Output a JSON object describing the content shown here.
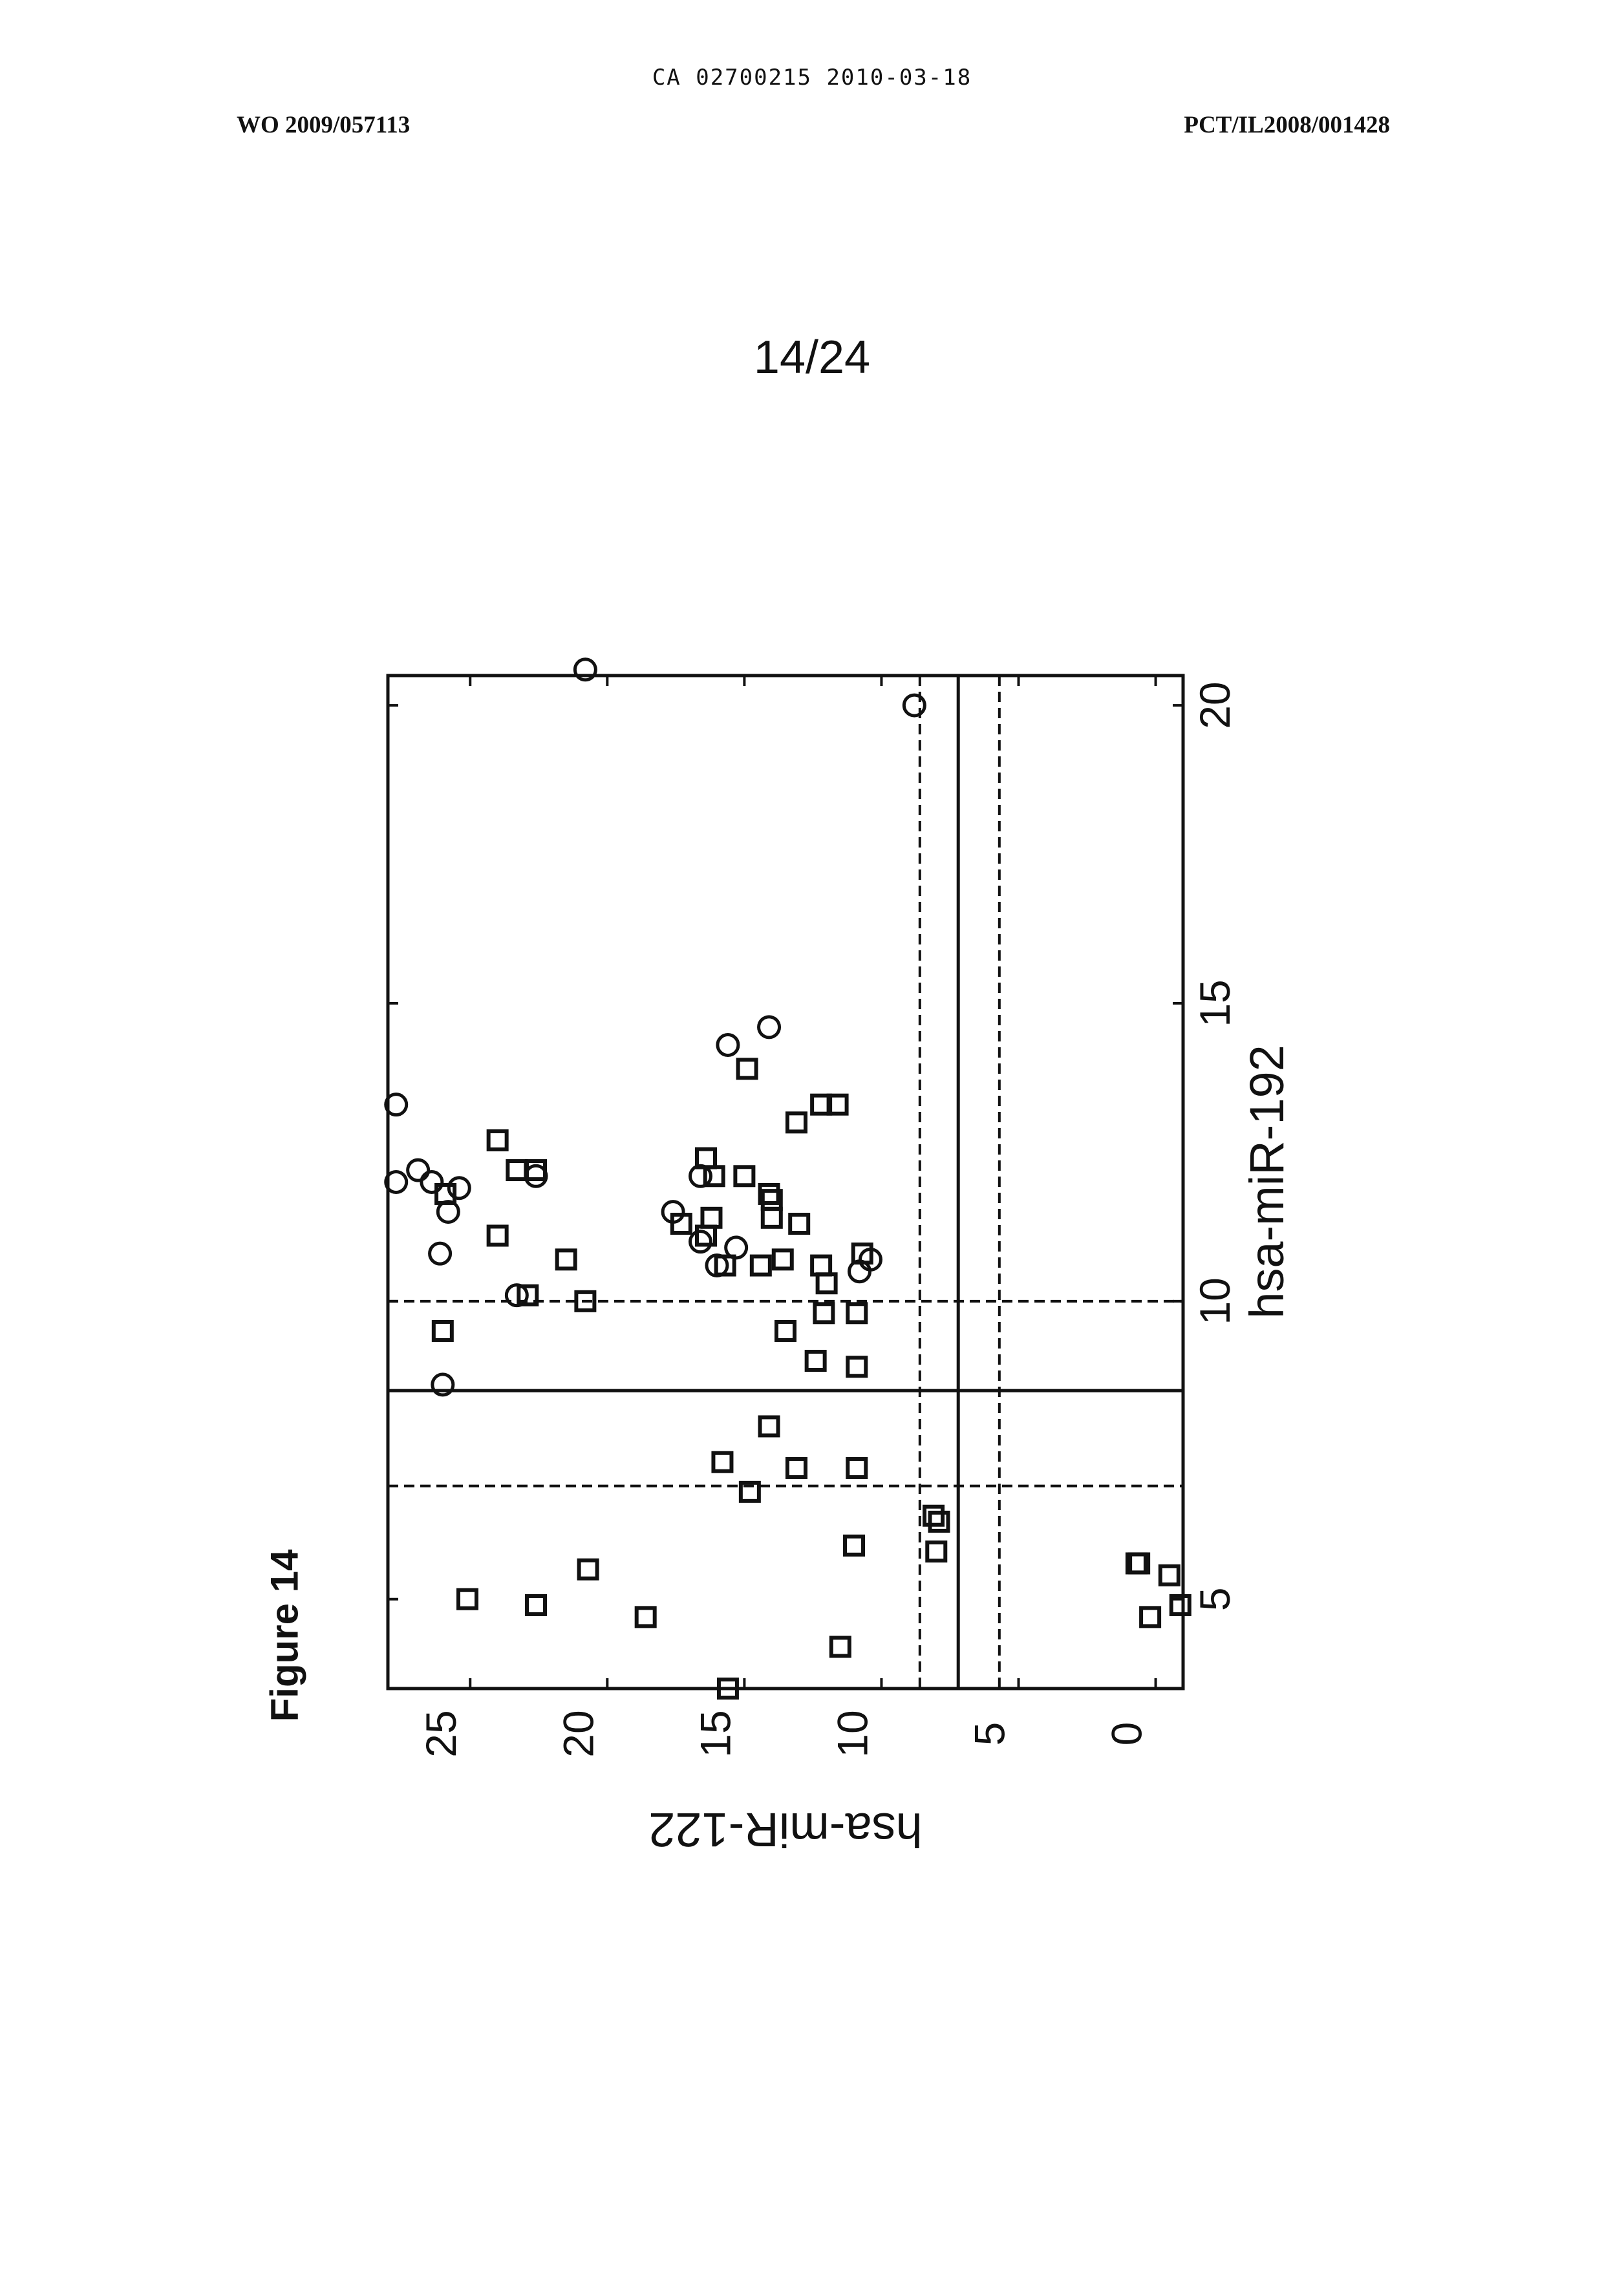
{
  "header": {
    "top_line": "CA 02700215 2010-03-18",
    "left": "WO 2009/057113",
    "right": "PCT/IL2008/001428",
    "page_number": "14/24"
  },
  "figure_label": "Figure 14",
  "chart_data": {
    "type": "scatter",
    "title": "",
    "xlabel": "hsa-miR-192",
    "ylabel": "hsa-miR-122",
    "xlim": [
      3.5,
      20.5
    ],
    "ylim": [
      -1,
      28
    ],
    "xticks": [
      "5",
      "10",
      "15",
      "20"
    ],
    "yticks": [
      "0",
      "5",
      "10",
      "15",
      "20",
      "25"
    ],
    "xtick_values": [
      5,
      10,
      15,
      20
    ],
    "ytick_values": [
      0,
      5,
      10,
      15,
      20,
      25
    ],
    "orientation": "rotated 90 degrees counter-clockwise on page",
    "grid": false,
    "series": [
      {
        "marker": "circle",
        "points": [
          [
            20.6,
            20.8
          ],
          [
            20.0,
            8.8
          ],
          [
            14.6,
            14.1
          ],
          [
            14.3,
            15.6
          ],
          [
            13.3,
            27.7
          ],
          [
            12.2,
            26.9
          ],
          [
            12.0,
            27.7
          ],
          [
            12.0,
            26.4
          ],
          [
            11.9,
            25.4
          ],
          [
            11.5,
            25.8
          ],
          [
            10.8,
            26.1
          ],
          [
            12.1,
            16.6
          ],
          [
            11.5,
            17.6
          ],
          [
            11.0,
            16.6
          ],
          [
            10.9,
            15.3
          ],
          [
            10.6,
            16.0
          ],
          [
            10.7,
            10.4
          ],
          [
            10.5,
            10.8
          ],
          [
            10.1,
            23.3
          ],
          [
            12.1,
            22.6
          ],
          [
            8.6,
            26.0
          ]
        ]
      },
      {
        "marker": "square",
        "points": [
          [
            13.9,
            14.9
          ],
          [
            13.3,
            12.2
          ],
          [
            13.3,
            11.6
          ],
          [
            13.0,
            13.1
          ],
          [
            12.7,
            24.0
          ],
          [
            12.2,
            23.3
          ],
          [
            12.2,
            22.6
          ],
          [
            12.4,
            16.4
          ],
          [
            12.1,
            16.1
          ],
          [
            12.1,
            15.0
          ],
          [
            11.8,
            25.9
          ],
          [
            11.8,
            14.1
          ],
          [
            11.7,
            14.0
          ],
          [
            11.4,
            16.2
          ],
          [
            11.3,
            17.3
          ],
          [
            11.4,
            14.0
          ],
          [
            11.3,
            13.0
          ],
          [
            11.1,
            24.0
          ],
          [
            11.1,
            16.4
          ],
          [
            10.7,
            21.5
          ],
          [
            10.7,
            13.6
          ],
          [
            10.6,
            14.4
          ],
          [
            10.6,
            15.7
          ],
          [
            10.6,
            12.2
          ],
          [
            10.8,
            10.7
          ],
          [
            10.3,
            12.0
          ],
          [
            10.1,
            22.9
          ],
          [
            10.0,
            20.8
          ],
          [
            9.8,
            12.1
          ],
          [
            9.8,
            10.9
          ],
          [
            9.5,
            26.0
          ],
          [
            9.5,
            13.5
          ],
          [
            9.0,
            12.4
          ],
          [
            8.9,
            10.9
          ],
          [
            7.9,
            14.1
          ],
          [
            7.3,
            15.8
          ],
          [
            7.2,
            13.1
          ],
          [
            7.2,
            10.9
          ],
          [
            6.8,
            14.8
          ],
          [
            6.4,
            8.1
          ],
          [
            6.3,
            7.9
          ],
          [
            5.9,
            11.0
          ],
          [
            5.8,
            8.0
          ],
          [
            5.6,
            0.7
          ],
          [
            5.6,
            0.6
          ],
          [
            5.5,
            20.7
          ],
          [
            5.4,
            -0.5
          ],
          [
            5.0,
            25.1
          ],
          [
            4.9,
            22.6
          ],
          [
            4.9,
            -0.9
          ],
          [
            4.7,
            18.6
          ],
          [
            4.7,
            0.2
          ],
          [
            4.2,
            11.5
          ],
          [
            3.5,
            15.6
          ]
        ]
      }
    ],
    "reference_lines": [
      {
        "axis": "x",
        "value": 8.5,
        "style": "solid"
      },
      {
        "axis": "x",
        "value": 6.9,
        "style": "dashed"
      },
      {
        "axis": "x",
        "value": 10.0,
        "style": "dashed"
      },
      {
        "axis": "y",
        "value": 7.2,
        "style": "solid"
      },
      {
        "axis": "y",
        "value": 8.6,
        "style": "dashed"
      },
      {
        "axis": "y",
        "value": 5.7,
        "style": "dashed"
      }
    ]
  }
}
